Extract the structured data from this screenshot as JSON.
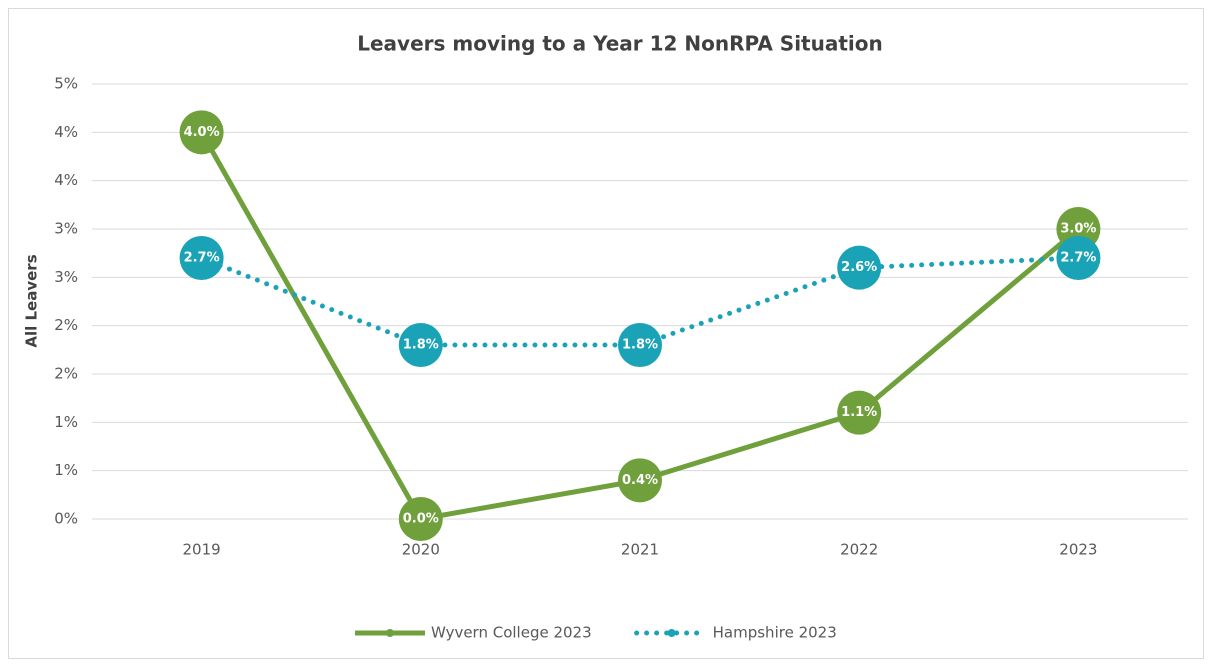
{
  "chart_data": {
    "type": "line",
    "title": "Leavers moving to a Year 12 NonRPA Situation",
    "y_label": "All Leavers",
    "categories": [
      "2019",
      "2020",
      "2021",
      "2022",
      "2023"
    ],
    "series": [
      {
        "name": "Wyvern College 2023",
        "color": "#70a03c",
        "line_style": "solid",
        "values": [
          4.0,
          0.0,
          0.4,
          1.1,
          3.0
        ],
        "value_labels": [
          "4.0%",
          "0.0%",
          "0.4%",
          "1.1%",
          "3.0%"
        ]
      },
      {
        "name": "Hampshire 2023",
        "color": "#1aa3b6",
        "line_style": "dotted",
        "values": [
          2.7,
          1.8,
          1.8,
          2.6,
          2.7
        ],
        "value_labels": [
          "2.7%",
          "1.8%",
          "1.8%",
          "2.6%",
          "2.7%"
        ]
      }
    ],
    "ylim": [
      0,
      4.5
    ],
    "yticks": [
      {
        "value": 0,
        "label": "0%"
      },
      {
        "value": 0.5,
        "label": "1%"
      },
      {
        "value": 1,
        "label": "1%"
      },
      {
        "value": 1.5,
        "label": "2%"
      },
      {
        "value": 2,
        "label": "2%"
      },
      {
        "value": 2.5,
        "label": "3%"
      },
      {
        "value": 3,
        "label": "3%"
      },
      {
        "value": 3.5,
        "label": "4%"
      },
      {
        "value": 4,
        "label": "4%"
      },
      {
        "value": 4.5,
        "label": "5%"
      }
    ],
    "grid": true,
    "legend": "bottom"
  }
}
